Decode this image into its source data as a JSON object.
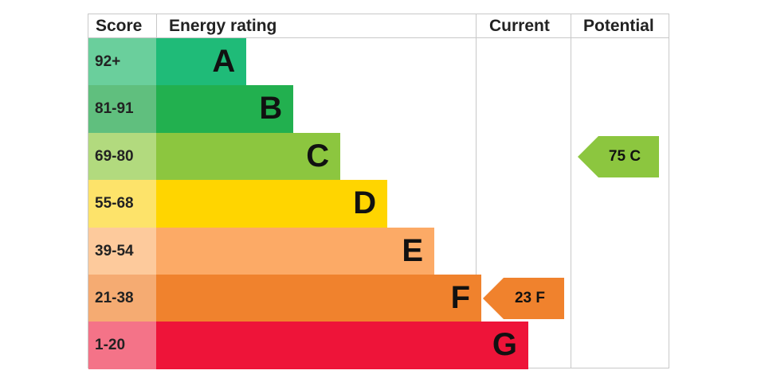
{
  "headers": {
    "score": "Score",
    "rating": "Energy rating",
    "current": "Current",
    "potential": "Potential"
  },
  "chart_data": {
    "type": "bar",
    "bands": [
      {
        "letter": "A",
        "score": "92+",
        "color": "#1fbb78",
        "score_bg": "#6acf9c",
        "fill": 0.196
      },
      {
        "letter": "B",
        "score": "81-91",
        "color": "#22b04f",
        "score_bg": "#60bf7e",
        "fill": 0.298
      },
      {
        "letter": "C",
        "score": "69-80",
        "color": "#8cc63f",
        "score_bg": "#b2da7e",
        "fill": 0.4
      },
      {
        "letter": "D",
        "score": "55-68",
        "color": "#ffd500",
        "score_bg": "#fde36a",
        "fill": 0.502
      },
      {
        "letter": "E",
        "score": "39-54",
        "color": "#fcaa66",
        "score_bg": "#fdca9c",
        "fill": 0.604
      },
      {
        "letter": "F",
        "score": "21-38",
        "color": "#f0822d",
        "score_bg": "#f5ab72",
        "fill": 0.706
      },
      {
        "letter": "G",
        "score": "1-20",
        "color": "#ee1439",
        "score_bg": "#f47388",
        "fill": 0.808
      }
    ],
    "current": {
      "label": "23 F",
      "band": "F",
      "value": 23,
      "color": "#f0822d"
    },
    "potential": {
      "label": "75 C",
      "band": "C",
      "value": 75,
      "color": "#8cc63f"
    }
  }
}
